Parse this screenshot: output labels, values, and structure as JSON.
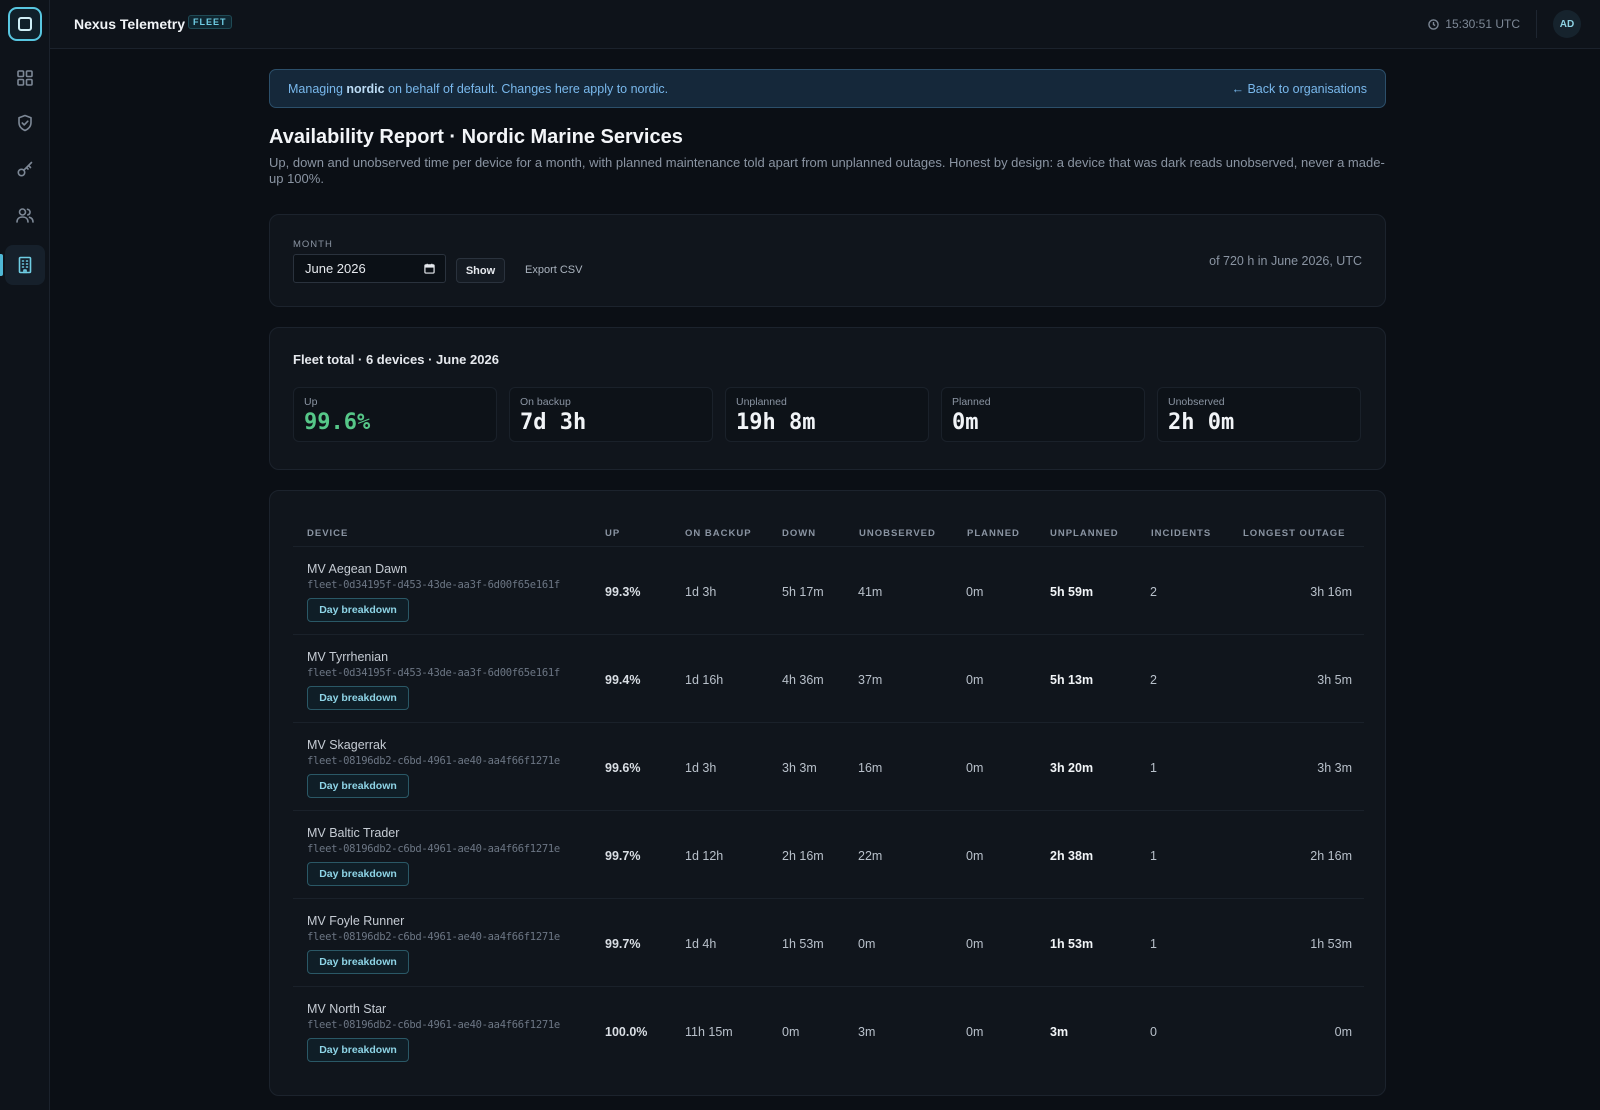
{
  "app": {
    "title": "Nexus Telemetry",
    "badge": "FLEET",
    "clock": "15:30:51 UTC",
    "avatar": "AD"
  },
  "banner": {
    "prefix": "Managing ",
    "org": "nordic",
    "suffix": " on behalf of default. Changes here apply to nordic.",
    "back_label": "← Back to organisations"
  },
  "page": {
    "title": "Availability Report · Nordic Marine Services",
    "description": "Up, down and unobserved time per device for a month, with planned maintenance told apart from unplanned outages. Honest by design: a device that was dark reads unobserved, never a made-up 100%."
  },
  "filter": {
    "month_label": "MONTH",
    "month_value": "June 2026",
    "show_label": "Show",
    "export_label": "Export CSV",
    "range_note": "of 720 h in June 2026, UTC"
  },
  "totals": {
    "title": "Fleet total · 6 devices · June 2026",
    "stats": [
      {
        "label": "Up",
        "value": "99.6%"
      },
      {
        "label": "On backup",
        "value": "7d 3h"
      },
      {
        "label": "Unplanned",
        "value": "19h 8m"
      },
      {
        "label": "Planned",
        "value": "0m"
      },
      {
        "label": "Unobserved",
        "value": "2h 0m"
      }
    ]
  },
  "table": {
    "headers": {
      "device": "DEVICE",
      "up": "UP",
      "on_backup": "ON BACKUP",
      "down": "DOWN",
      "unobserved": "UNOBSERVED",
      "planned": "PLANNED",
      "unplanned": "UNPLANNED",
      "incidents": "INCIDENTS",
      "longest_outage": "LONGEST OUTAGE"
    },
    "day_breakdown_label": "Day breakdown",
    "rows": [
      {
        "name": "MV Aegean Dawn",
        "id": "fleet-0d34195f-d453-43de-aa3f-6d00f65e161f",
        "up": "99.3%",
        "on_backup": "1d 3h",
        "down": "5h 17m",
        "unobserved": "41m",
        "planned": "0m",
        "unplanned": "5h 59m",
        "incidents": "2",
        "longest": "3h 16m"
      },
      {
        "name": "MV Tyrrhenian",
        "id": "fleet-0d34195f-d453-43de-aa3f-6d00f65e161f",
        "up": "99.4%",
        "on_backup": "1d 16h",
        "down": "4h 36m",
        "unobserved": "37m",
        "planned": "0m",
        "unplanned": "5h 13m",
        "incidents": "2",
        "longest": "3h 5m"
      },
      {
        "name": "MV Skagerrak",
        "id": "fleet-08196db2-c6bd-4961-ae40-aa4f66f1271e",
        "up": "99.6%",
        "on_backup": "1d 3h",
        "down": "3h 3m",
        "unobserved": "16m",
        "planned": "0m",
        "unplanned": "3h 20m",
        "incidents": "1",
        "longest": "3h 3m"
      },
      {
        "name": "MV Baltic Trader",
        "id": "fleet-08196db2-c6bd-4961-ae40-aa4f66f1271e",
        "up": "99.7%",
        "on_backup": "1d 12h",
        "down": "2h 16m",
        "unobserved": "22m",
        "planned": "0m",
        "unplanned": "2h 38m",
        "incidents": "1",
        "longest": "2h 16m"
      },
      {
        "name": "MV Foyle Runner",
        "id": "fleet-08196db2-c6bd-4961-ae40-aa4f66f1271e",
        "up": "99.7%",
        "on_backup": "1d 4h",
        "down": "1h 53m",
        "unobserved": "0m",
        "planned": "0m",
        "unplanned": "1h 53m",
        "incidents": "1",
        "longest": "1h 53m"
      },
      {
        "name": "MV North Star",
        "id": "fleet-08196db2-c6bd-4961-ae40-aa4f66f1271e",
        "up": "100.0%",
        "on_backup": "11h 15m",
        "down": "0m",
        "unobserved": "3m",
        "planned": "0m",
        "unplanned": "3m",
        "incidents": "0",
        "longest": "0m"
      }
    ]
  }
}
